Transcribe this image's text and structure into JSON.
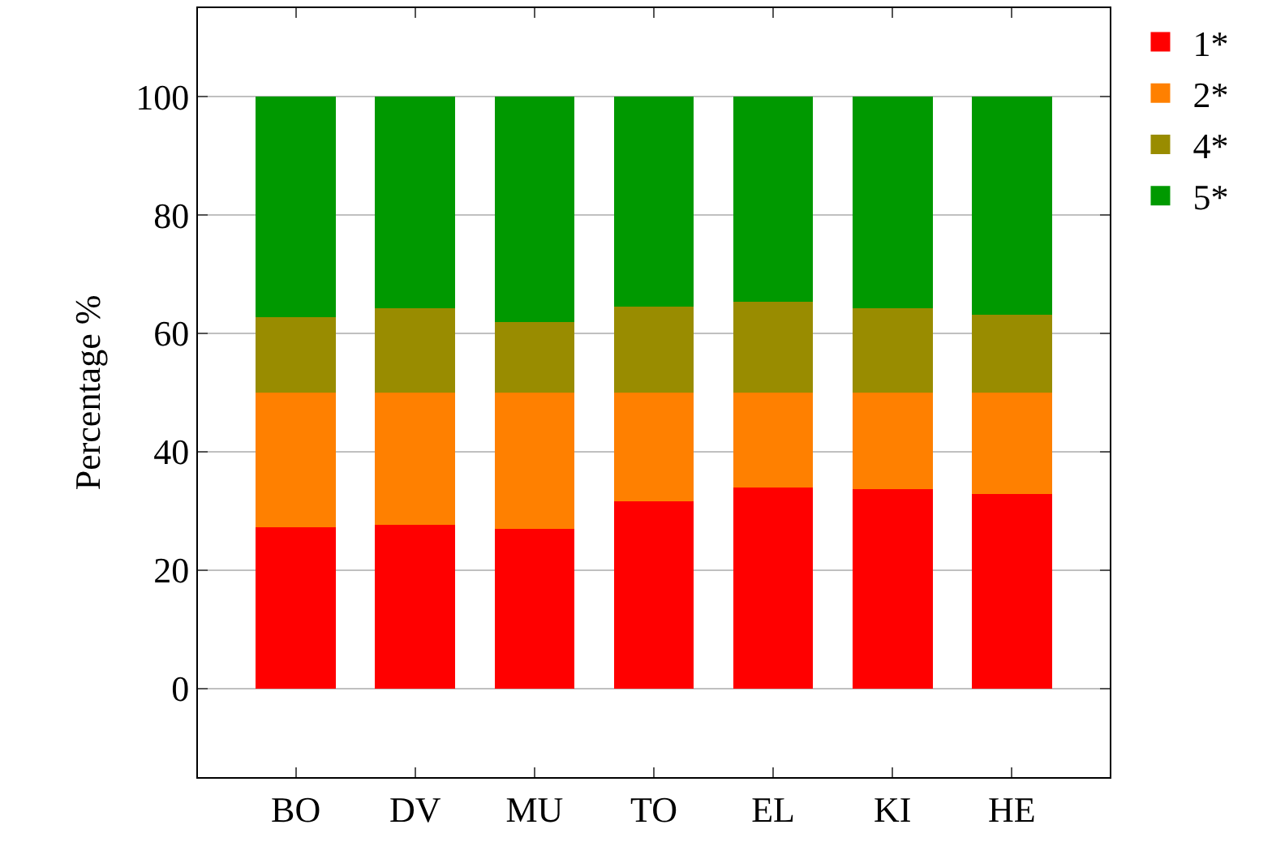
{
  "chart_data": {
    "type": "bar",
    "stacked": true,
    "ylabel": "Percentage %",
    "categories": [
      "BO",
      "DV",
      "MU",
      "TO",
      "EL",
      "KI",
      "HE"
    ],
    "series": [
      {
        "name": "1*",
        "color": "#ff0000",
        "values": [
          27.2,
          27.7,
          26.9,
          31.6,
          34.0,
          33.7,
          32.8
        ]
      },
      {
        "name": "2*",
        "color": "#ff8000",
        "values": [
          22.8,
          22.3,
          23.1,
          18.4,
          16.0,
          16.3,
          17.2
        ]
      },
      {
        "name": "4*",
        "color": "#998c00",
        "values": [
          12.7,
          14.3,
          11.9,
          14.6,
          15.4,
          14.2,
          13.2
        ]
      },
      {
        "name": "5*",
        "color": "#009900",
        "values": [
          37.3,
          35.7,
          38.1,
          35.4,
          34.6,
          35.8,
          36.8
        ]
      }
    ],
    "ylim": [
      -15,
      115
    ],
    "yticks": [
      0,
      20,
      40,
      60,
      80,
      100
    ],
    "grid": "y",
    "legend": "top right"
  }
}
